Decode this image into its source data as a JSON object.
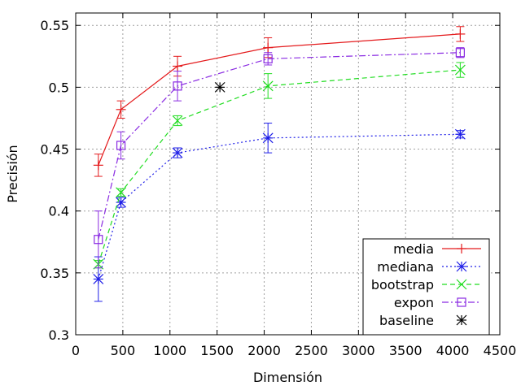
{
  "chart_data": {
    "type": "line",
    "title": "",
    "xlabel": "Dimensión",
    "ylabel": "Precisión",
    "xlim": [
      0,
      4500
    ],
    "ylim": [
      0.3,
      0.56
    ],
    "x_ticks": [
      0,
      500,
      1000,
      1500,
      2000,
      2500,
      3000,
      3500,
      4000,
      4500
    ],
    "y_ticks": [
      0.3,
      0.35,
      0.4,
      0.45,
      0.5,
      0.55
    ],
    "y_tick_labels": [
      "0.3",
      "0.35",
      "0.4",
      "0.45",
      "0.5",
      "0.55"
    ],
    "grid": true,
    "legend_position": "bottom-right",
    "series": [
      {
        "name": "media",
        "color": "#e41a1c",
        "dash": "",
        "marker": "plus",
        "x": [
          240,
          480,
          1080,
          2040,
          4080
        ],
        "y": [
          0.437,
          0.482,
          0.517,
          0.532,
          0.543
        ],
        "err": [
          0.009,
          0.007,
          0.008,
          0.008,
          0.006
        ]
      },
      {
        "name": "mediana",
        "color": "#1f1fe8",
        "dash": "2,3",
        "marker": "star",
        "x": [
          240,
          480,
          1080,
          2040,
          4080
        ],
        "y": [
          0.345,
          0.407,
          0.447,
          0.459,
          0.462
        ],
        "err": [
          0.018,
          0.004,
          0.004,
          0.012,
          0.003
        ]
      },
      {
        "name": "bootstrap",
        "color": "#22dd22",
        "dash": "6,4",
        "marker": "cross",
        "x": [
          240,
          480,
          1080,
          2040,
          4080
        ],
        "y": [
          0.357,
          0.415,
          0.473,
          0.501,
          0.514
        ],
        "err": [
          0.003,
          0.003,
          0.004,
          0.01,
          0.006
        ]
      },
      {
        "name": "expon",
        "color": "#8a2be2",
        "dash": "8,3,2,3",
        "marker": "square",
        "x": [
          240,
          480,
          1080,
          2040,
          4080
        ],
        "y": [
          0.377,
          0.453,
          0.501,
          0.523,
          0.528
        ],
        "err": [
          0.023,
          0.011,
          0.012,
          0.005,
          0.004
        ]
      },
      {
        "name": "baseline",
        "color": "#000000",
        "dash": "",
        "marker": "star",
        "x": [
          1530
        ],
        "y": [
          0.5
        ],
        "err": [
          0
        ],
        "no_line": true
      }
    ]
  }
}
